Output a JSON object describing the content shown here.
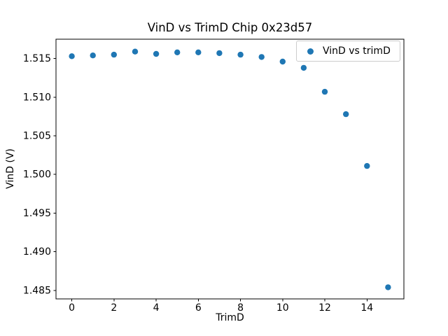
{
  "chart_data": {
    "type": "scatter",
    "title": "VinD vs TrimD Chip 0x23d57",
    "xlabel": "TrimD",
    "ylabel": "VinD (V)",
    "series": [
      {
        "name": "VinD vs trimD",
        "color": "#1f77b4",
        "x": [
          0,
          1,
          2,
          3,
          4,
          5,
          6,
          7,
          8,
          9,
          10,
          11,
          12,
          13,
          14,
          15
        ],
        "y": [
          1.5153,
          1.5154,
          1.5155,
          1.5159,
          1.5156,
          1.5158,
          1.5158,
          1.5157,
          1.5155,
          1.5152,
          1.5146,
          1.5138,
          1.5107,
          1.5078,
          1.5011,
          1.4854
        ]
      }
    ],
    "xlim": [
      -0.75,
      15.75
    ],
    "ylim": [
      1.4839,
      1.5175
    ],
    "xticks": [
      0,
      2,
      4,
      6,
      8,
      10,
      12,
      14
    ],
    "yticks": [
      1.485,
      1.49,
      1.495,
      1.5,
      1.505,
      1.51,
      1.515
    ],
    "ytick_format_decimals": 3,
    "grid": false,
    "legend": {
      "label": "VinD vs trimD",
      "position": "upper right"
    },
    "colors": {
      "marker": "#1f77b4",
      "axis": "#000000",
      "legend_edge": "#cccccc",
      "background": "#ffffff"
    }
  }
}
